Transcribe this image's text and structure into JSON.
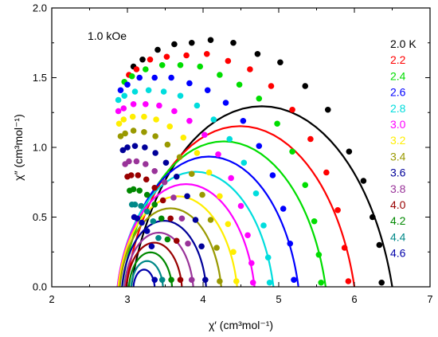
{
  "chart_data": {
    "type": "scatter",
    "title": "",
    "annotation": "1.0 kOe",
    "xlabel": "χ′ (cm³mol⁻¹)",
    "ylabel": "χ″ (cm³mol⁻¹)",
    "xlim": [
      2,
      7
    ],
    "ylim": [
      0,
      2.0
    ],
    "x_ticks": [
      "2",
      "3",
      "4",
      "5",
      "6",
      "7"
    ],
    "y_ticks": [
      "0.0",
      "0.5",
      "1.0",
      "1.5",
      "2.0"
    ],
    "grid": false,
    "legend": "right",
    "series": [
      {
        "name": "2.0 K",
        "color": "#000000",
        "fit": {
          "chi_s": 3.05,
          "chi_t": 6.5,
          "alpha": 0.18
        },
        "x": [
          3.08,
          3.2,
          3.4,
          3.62,
          3.85,
          4.1,
          4.4,
          4.72,
          5.02,
          5.35,
          5.65,
          5.93,
          6.12,
          6.24,
          6.33,
          6.36
        ],
        "y": [
          1.58,
          1.63,
          1.7,
          1.74,
          1.75,
          1.77,
          1.75,
          1.67,
          1.61,
          1.44,
          1.27,
          0.97,
          0.76,
          0.5,
          0.3,
          0.03
        ]
      },
      {
        "name": "2.2",
        "color": "#ff0000",
        "fit": {
          "chi_s": 2.98,
          "chi_t": 6.0,
          "alpha": 0.17
        },
        "x": [
          3.02,
          3.12,
          3.3,
          3.52,
          3.78,
          4.05,
          4.33,
          4.62,
          4.9,
          5.18,
          5.42,
          5.63,
          5.78,
          5.87,
          5.92
        ],
        "y": [
          1.52,
          1.56,
          1.63,
          1.65,
          1.66,
          1.67,
          1.62,
          1.56,
          1.44,
          1.27,
          1.06,
          0.82,
          0.55,
          0.28,
          0.04
        ]
      },
      {
        "name": "2.4",
        "color": "#00dd00",
        "fit": {
          "chi_s": 2.93,
          "chi_t": 5.62,
          "alpha": 0.16
        },
        "x": [
          2.96,
          3.06,
          3.24,
          3.46,
          3.7,
          3.96,
          4.22,
          4.48,
          4.74,
          4.98,
          5.18,
          5.35,
          5.47,
          5.53,
          5.56
        ],
        "y": [
          1.47,
          1.51,
          1.56,
          1.59,
          1.59,
          1.58,
          1.52,
          1.45,
          1.35,
          1.17,
          0.97,
          0.73,
          0.47,
          0.23,
          0.03
        ]
      },
      {
        "name": "2.6",
        "color": "#0000ff",
        "fit": {
          "chi_s": 2.89,
          "chi_t": 5.26,
          "alpha": 0.15
        },
        "x": [
          2.91,
          3.0,
          3.16,
          3.36,
          3.58,
          3.82,
          4.06,
          4.3,
          4.53,
          4.74,
          4.92,
          5.06,
          5.15,
          5.2
        ],
        "y": [
          1.41,
          1.45,
          1.5,
          1.5,
          1.5,
          1.46,
          1.41,
          1.32,
          1.19,
          1.01,
          0.8,
          0.56,
          0.31,
          0.05
        ]
      },
      {
        "name": "2.8",
        "color": "#00dddd",
        "fit": {
          "chi_s": 2.87,
          "chi_t": 4.93,
          "alpha": 0.14
        },
        "x": [
          2.88,
          2.96,
          3.1,
          3.28,
          3.48,
          3.7,
          3.92,
          4.14,
          4.35,
          4.54,
          4.7,
          4.8,
          4.86,
          4.88
        ],
        "y": [
          1.34,
          1.37,
          1.4,
          1.41,
          1.4,
          1.37,
          1.3,
          1.2,
          1.06,
          0.89,
          0.67,
          0.44,
          0.21,
          0.03
        ]
      },
      {
        "name": "3.0",
        "color": "#ff00ff",
        "fit": {
          "chi_s": 2.87,
          "chi_t": 4.68,
          "alpha": 0.13
        },
        "x": [
          2.88,
          2.95,
          3.08,
          3.24,
          3.42,
          3.62,
          3.82,
          4.02,
          4.2,
          4.37,
          4.5,
          4.59,
          4.64,
          4.66
        ],
        "y": [
          1.26,
          1.28,
          1.31,
          1.31,
          1.3,
          1.26,
          1.19,
          1.09,
          0.95,
          0.78,
          0.58,
          0.37,
          0.17,
          0.03
        ]
      },
      {
        "name": "3.2",
        "color": "#ffee00",
        "fit": {
          "chi_s": 2.88,
          "chi_t": 4.45,
          "alpha": 0.12
        },
        "x": [
          2.89,
          2.95,
          3.07,
          3.22,
          3.38,
          3.56,
          3.74,
          3.92,
          4.08,
          4.22,
          4.33,
          4.4,
          4.44
        ],
        "y": [
          1.17,
          1.2,
          1.22,
          1.22,
          1.2,
          1.15,
          1.07,
          0.96,
          0.82,
          0.65,
          0.45,
          0.25,
          0.04
        ]
      },
      {
        "name": "3.4",
        "color": "#999900",
        "fit": {
          "chi_s": 2.9,
          "chi_t": 4.24,
          "alpha": 0.11
        },
        "x": [
          2.91,
          2.97,
          3.08,
          3.22,
          3.37,
          3.53,
          3.69,
          3.85,
          3.99,
          4.1,
          4.18,
          4.22
        ],
        "y": [
          1.08,
          1.1,
          1.12,
          1.11,
          1.08,
          1.02,
          0.93,
          0.81,
          0.66,
          0.48,
          0.28,
          0.04
        ]
      },
      {
        "name": "3.6",
        "color": "#000099",
        "fit": {
          "chi_s": 2.93,
          "chi_t": 4.04,
          "alpha": 0.1
        },
        "x": [
          2.94,
          3.0,
          3.1,
          3.23,
          3.37,
          3.51,
          3.65,
          3.79,
          3.9,
          3.98,
          4.03
        ],
        "y": [
          0.98,
          1.0,
          1.01,
          1.0,
          0.96,
          0.89,
          0.79,
          0.65,
          0.48,
          0.29,
          0.05
        ]
      },
      {
        "name": "3.8",
        "color": "#993399",
        "fit": {
          "chi_s": 2.96,
          "chi_t": 3.87,
          "alpha": 0.1
        },
        "x": [
          2.97,
          3.02,
          3.12,
          3.24,
          3.36,
          3.49,
          3.61,
          3.72,
          3.8,
          3.85
        ],
        "y": [
          0.88,
          0.9,
          0.9,
          0.88,
          0.83,
          0.75,
          0.64,
          0.49,
          0.31,
          0.05
        ]
      },
      {
        "name": "4.0",
        "color": "#990000",
        "fit": {
          "chi_s": 2.99,
          "chi_t": 3.72,
          "alpha": 0.09
        },
        "x": [
          3.0,
          3.05,
          3.14,
          3.25,
          3.36,
          3.47,
          3.57,
          3.65,
          3.7
        ],
        "y": [
          0.79,
          0.8,
          0.8,
          0.77,
          0.71,
          0.62,
          0.49,
          0.33,
          0.05
        ]
      },
      {
        "name": "4.2",
        "color": "#008800",
        "fit": {
          "chi_s": 3.02,
          "chi_t": 3.59,
          "alpha": 0.09
        },
        "x": [
          3.03,
          3.08,
          3.16,
          3.26,
          3.36,
          3.45,
          3.53,
          3.58
        ],
        "y": [
          0.69,
          0.7,
          0.69,
          0.66,
          0.59,
          0.49,
          0.34,
          0.05
        ]
      },
      {
        "name": "4.4",
        "color": "#008888",
        "fit": {
          "chi_s": 3.05,
          "chi_t": 3.47,
          "alpha": 0.08
        },
        "x": [
          3.06,
          3.1,
          3.18,
          3.26,
          3.34,
          3.41,
          3.46
        ],
        "y": [
          0.59,
          0.59,
          0.58,
          0.54,
          0.47,
          0.35,
          0.05
        ]
      },
      {
        "name": "4.6",
        "color": "#0000aa",
        "fit": {
          "chi_s": 3.08,
          "chi_t": 3.36,
          "alpha": 0.08
        },
        "x": [
          3.09,
          3.13,
          3.19,
          3.26,
          3.32,
          3.36
        ],
        "y": [
          0.5,
          0.49,
          0.46,
          0.4,
          0.29,
          0.05
        ]
      }
    ]
  }
}
